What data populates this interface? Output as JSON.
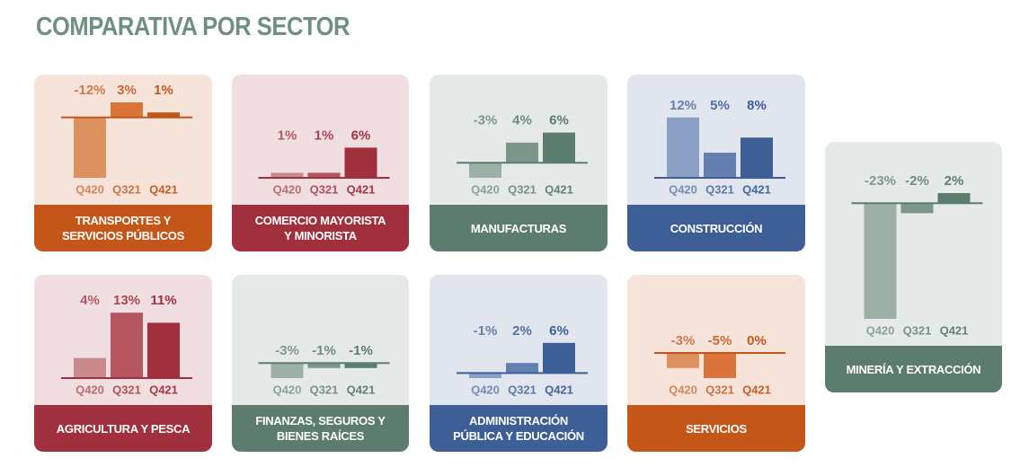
{
  "title": "COMPARATIVA POR SECTOR",
  "chart_data": [
    {
      "type": "bar",
      "title": "TRANSPORTES Y SERVICIOS PÚBLICOS",
      "categories": [
        "Q420",
        "Q321",
        "Q421"
      ],
      "values": [
        -12,
        3,
        1
      ],
      "value_labels": [
        "-12%",
        "3%",
        "1%"
      ],
      "color": "#c4561a",
      "colors": [
        "#dd915f",
        "#d9743b",
        "#c4561a"
      ]
    },
    {
      "type": "bar",
      "title": "COMERCIO MAYORISTA Y MINORISTA",
      "categories": [
        "Q420",
        "Q321",
        "Q421"
      ],
      "values": [
        1,
        1,
        6
      ],
      "value_labels": [
        "1%",
        "1%",
        "6%"
      ],
      "color": "#a0303d",
      "colors": [
        "#c98a8e",
        "#b45560",
        "#a0303d"
      ]
    },
    {
      "type": "bar",
      "title": "MANUFACTURAS",
      "categories": [
        "Q420",
        "Q321",
        "Q421"
      ],
      "values": [
        -3,
        4,
        6
      ],
      "value_labels": [
        "-3%",
        "4%",
        "6%"
      ],
      "color": "#5c7d6d",
      "colors": [
        "#9cb0a5",
        "#7c978a",
        "#5c7d6d"
      ]
    },
    {
      "type": "bar",
      "title": "CONSTRUCCIÓN",
      "categories": [
        "Q420",
        "Q321",
        "Q421"
      ],
      "values": [
        12,
        5,
        8
      ],
      "value_labels": [
        "12%",
        "5%",
        "8%"
      ],
      "color": "#3d5f96",
      "colors": [
        "#8aa0c4",
        "#6480b0",
        "#3d5f96"
      ]
    },
    {
      "type": "bar",
      "title": "MINERÍA Y EXTRACCIÓN",
      "categories": [
        "Q420",
        "Q321",
        "Q421"
      ],
      "values": [
        -23,
        -2,
        2
      ],
      "value_labels": [
        "-23%",
        "-2%",
        "2%"
      ],
      "color": "#5c7d6d",
      "colors": [
        "#9cb0a5",
        "#7c978a",
        "#5c7d6d"
      ]
    },
    {
      "type": "bar",
      "title": "AGRICULTURA Y PESCA",
      "categories": [
        "Q420",
        "Q321",
        "Q421"
      ],
      "values": [
        4,
        13,
        11
      ],
      "value_labels": [
        "4%",
        "13%",
        "11%"
      ],
      "color": "#a0303d",
      "colors": [
        "#c98a8e",
        "#b45560",
        "#a0303d"
      ]
    },
    {
      "type": "bar",
      "title": "FINANZAS, SEGUROS Y BIENES RAÍCES",
      "categories": [
        "Q420",
        "Q321",
        "Q421"
      ],
      "values": [
        -3,
        -1,
        -1
      ],
      "value_labels": [
        "-3%",
        "-1%",
        "-1%"
      ],
      "color": "#5c7d6d",
      "colors": [
        "#9cb0a5",
        "#7c978a",
        "#5c7d6d"
      ]
    },
    {
      "type": "bar",
      "title": "ADMINISTRACIÓN PÚBLICA Y EDUCACIÓN",
      "categories": [
        "Q420",
        "Q321",
        "Q421"
      ],
      "values": [
        -1,
        2,
        6
      ],
      "value_labels": [
        "-1%",
        "2%",
        "6%"
      ],
      "color": "#3d5f96",
      "colors": [
        "#8aa0c4",
        "#6480b0",
        "#3d5f96"
      ]
    },
    {
      "type": "bar",
      "title": "SERVICIOS",
      "categories": [
        "Q420",
        "Q321",
        "Q421"
      ],
      "values": [
        -3,
        -5,
        0
      ],
      "value_labels": [
        "-3%",
        "-5%",
        "0%"
      ],
      "color": "#c4561a",
      "colors": [
        "#dd915f",
        "#d9743b",
        "#c4561a"
      ]
    }
  ]
}
